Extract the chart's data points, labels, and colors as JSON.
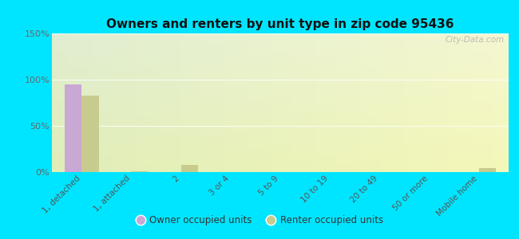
{
  "title": "Owners and renters by unit type in zip code 95436",
  "categories": [
    "1, detached",
    "1, attached",
    "2",
    "3 or 4",
    "5 to 9",
    "10 to 19",
    "20 to 49",
    "50 or more",
    "Mobile home"
  ],
  "owner_values": [
    95,
    0,
    0,
    0,
    0,
    0,
    0,
    0,
    0
  ],
  "renter_values": [
    83,
    1,
    8,
    0,
    0,
    0,
    0,
    0,
    4
  ],
  "owner_color": "#c9a8d4",
  "renter_color": "#c8cb8e",
  "background_fig": "#00e5ff",
  "ylim": [
    0,
    150
  ],
  "yticks": [
    0,
    50,
    100,
    150
  ],
  "ytick_labels": [
    "0%",
    "50%",
    "100%",
    "150%"
  ],
  "bar_width": 0.35,
  "legend_owner": "Owner occupied units",
  "legend_renter": "Renter occupied units",
  "watermark": "City-Data.com"
}
